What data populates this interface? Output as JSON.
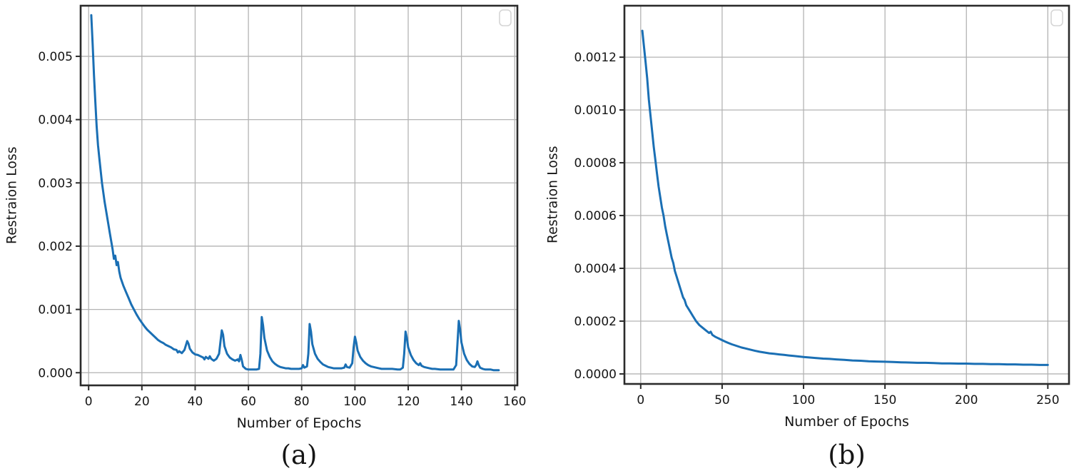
{
  "figure": {
    "background": "#ffffff",
    "line_color": "#1a6fb4",
    "grid_color": "#b3b3b3",
    "spine_color": "#2b2b2b",
    "text_color": "#151515",
    "legend_border_color": "#d5d5d5"
  },
  "chart_data": [
    {
      "type": "line",
      "id": "a",
      "caption": "(a)",
      "title": "",
      "xlabel": "Number of Epochs",
      "ylabel": "Restraion Loss",
      "grid": true,
      "legend": {
        "visible": true,
        "position": "upper right",
        "entries": []
      },
      "xlim": [
        -3,
        161
      ],
      "ylim": [
        -0.0002,
        0.0058
      ],
      "xticks": [
        0,
        20,
        40,
        60,
        80,
        100,
        120,
        140,
        160
      ],
      "xtick_labels": [
        "0",
        "20",
        "40",
        "60",
        "80",
        "100",
        "120",
        "140",
        "160"
      ],
      "yticks": [
        0.0,
        0.001,
        0.002,
        0.003,
        0.004,
        0.005
      ],
      "ytick_labels": [
        "0.000",
        "0.001",
        "0.002",
        "0.003",
        "0.004",
        "0.005"
      ],
      "series": [
        {
          "label": "",
          "x": [
            1,
            1.5,
            2,
            2.5,
            3,
            3.5,
            4,
            5,
            6,
            7,
            8,
            9,
            9.5,
            10,
            10.5,
            11,
            11.5,
            12,
            13,
            14,
            15,
            16,
            17,
            18,
            19,
            20,
            21,
            22,
            23,
            24,
            25,
            26,
            27,
            28,
            29,
            30,
            31,
            32,
            33,
            33.5,
            34,
            35,
            36,
            37,
            37.5,
            38,
            39,
            40,
            41,
            42,
            43,
            43.5,
            44,
            45,
            45.5,
            46,
            47,
            48,
            49,
            50,
            50.5,
            51,
            52,
            53,
            54,
            55,
            56,
            56.5,
            57,
            57.5,
            58,
            59,
            60,
            61,
            62,
            63,
            64,
            64.5,
            65,
            65.5,
            66,
            67,
            68,
            69,
            70,
            71,
            72,
            73,
            74,
            75,
            76,
            77,
            78,
            79,
            80,
            80.5,
            81,
            82,
            82.5,
            83,
            83.5,
            84,
            85,
            86,
            87,
            88,
            89,
            90,
            91,
            92,
            93,
            94,
            95,
            96,
            96.5,
            97,
            98,
            99,
            99.5,
            100,
            100.5,
            101,
            102,
            103,
            104,
            105,
            106,
            107,
            108,
            109,
            110,
            112,
            114,
            116,
            117,
            118,
            118.5,
            119,
            119.5,
            120,
            121,
            122,
            123,
            124,
            124.5,
            125,
            126,
            127,
            128,
            129,
            130,
            132,
            134,
            136,
            137,
            138,
            138.5,
            139,
            139.5,
            140,
            141,
            142,
            143,
            144,
            145,
            145.5,
            146,
            146.5,
            147,
            148,
            149,
            150,
            151,
            152,
            153,
            154
          ],
          "y": [
            0.00565,
            0.0052,
            0.0047,
            0.0043,
            0.0039,
            0.0036,
            0.0034,
            0.003,
            0.0027,
            0.00245,
            0.0022,
            0.00195,
            0.0018,
            0.00185,
            0.0017,
            0.00175,
            0.0016,
            0.0015,
            0.00138,
            0.00128,
            0.00118,
            0.00108,
            0.001,
            0.00092,
            0.00085,
            0.00079,
            0.00073,
            0.00068,
            0.00064,
            0.0006,
            0.00056,
            0.00052,
            0.00049,
            0.00047,
            0.00044,
            0.00042,
            0.0004,
            0.00037,
            0.00036,
            0.00032,
            0.00034,
            0.00031,
            0.00036,
            0.0005,
            0.00046,
            0.00038,
            0.00032,
            0.00029,
            0.00028,
            0.00026,
            0.00024,
            0.00021,
            0.00025,
            0.00022,
            0.00026,
            0.00022,
            0.00019,
            0.00022,
            0.0003,
            0.00067,
            0.0006,
            0.00042,
            0.0003,
            0.00024,
            0.00021,
            0.00019,
            0.00021,
            0.00018,
            0.00028,
            0.0002,
            0.0001,
            6e-05,
            5e-05,
            5e-05,
            5e-05,
            5e-05,
            6e-05,
            0.0003,
            0.00088,
            0.00075,
            0.00055,
            0.00035,
            0.00025,
            0.00018,
            0.00014,
            0.00011,
            9e-05,
            8e-05,
            7e-05,
            7e-05,
            6e-05,
            6e-05,
            6e-05,
            6e-05,
            7e-05,
            0.00012,
            8e-05,
            0.0001,
            0.0003,
            0.00077,
            0.00065,
            0.00045,
            0.0003,
            0.00022,
            0.00017,
            0.00013,
            0.00011,
            9e-05,
            8e-05,
            7e-05,
            7e-05,
            7e-05,
            7e-05,
            8e-05,
            0.00013,
            9e-05,
            8e-05,
            0.00015,
            0.0004,
            0.00057,
            0.00048,
            0.00035,
            0.00025,
            0.00019,
            0.00015,
            0.00012,
            0.0001,
            9e-05,
            8e-05,
            7e-05,
            6e-05,
            6e-05,
            6e-05,
            5e-05,
            5e-05,
            8e-05,
            0.0003,
            0.00065,
            0.00055,
            0.0004,
            0.00028,
            0.0002,
            0.00015,
            0.00012,
            0.00015,
            0.00011,
            9e-05,
            8e-05,
            7e-05,
            6e-05,
            6e-05,
            5e-05,
            5e-05,
            5e-05,
            5e-05,
            0.00012,
            0.00045,
            0.00082,
            0.00068,
            0.00048,
            0.0003,
            0.0002,
            0.00014,
            0.0001,
            9e-05,
            0.00012,
            0.00018,
            0.00012,
            8e-05,
            6e-05,
            5e-05,
            5e-05,
            5e-05,
            4e-05,
            4e-05,
            4e-05
          ]
        }
      ]
    },
    {
      "type": "line",
      "id": "b",
      "caption": "(b)",
      "title": "",
      "xlabel": "Number of Epochs",
      "ylabel": "Restraion Loss",
      "grid": true,
      "legend": {
        "visible": true,
        "position": "upper right",
        "entries": []
      },
      "xlim": [
        -10,
        263
      ],
      "ylim": [
        -3.8e-05,
        0.001395
      ],
      "xticks": [
        0,
        50,
        100,
        150,
        200,
        250
      ],
      "xtick_labels": [
        "0",
        "50",
        "100",
        "150",
        "200",
        "250"
      ],
      "yticks": [
        0.0,
        0.0002,
        0.0004,
        0.0006,
        0.0008,
        0.001,
        0.0012
      ],
      "ytick_labels": [
        "0.0000",
        "0.0002",
        "0.0004",
        "0.0006",
        "0.0008",
        "0.0010",
        "0.0012"
      ],
      "series": [
        {
          "label": "",
          "x": [
            1,
            2,
            3,
            4,
            5,
            6,
            7,
            8,
            9,
            10,
            11,
            12,
            13,
            14,
            15,
            16,
            17,
            18,
            19,
            20,
            21,
            22,
            23,
            24,
            25,
            26,
            27,
            28,
            29,
            30,
            32,
            34,
            36,
            38,
            40,
            42,
            43,
            44,
            46,
            48,
            50,
            52,
            54,
            56,
            58,
            60,
            62,
            64,
            66,
            68,
            70,
            73,
            76,
            79,
            82,
            85,
            88,
            91,
            94,
            97,
            100,
            104,
            108,
            112,
            116,
            120,
            125,
            130,
            135,
            140,
            145,
            150,
            155,
            160,
            165,
            170,
            175,
            180,
            185,
            190,
            195,
            200,
            205,
            210,
            215,
            220,
            225,
            230,
            235,
            240,
            245,
            250
          ],
          "y": [
            0.0013,
            0.00124,
            0.00118,
            0.00112,
            0.00104,
            0.00098,
            0.00092,
            0.00086,
            0.00081,
            0.00076,
            0.00071,
            0.00067,
            0.00063,
            0.0006,
            0.00056,
            0.00053,
            0.0005,
            0.00047,
            0.00044,
            0.00042,
            0.00039,
            0.00037,
            0.00035,
            0.00033,
            0.00031,
            0.00029,
            0.00028,
            0.00026,
            0.00025,
            0.00024,
            0.00022,
            0.0002,
            0.000185,
            0.000175,
            0.000165,
            0.000155,
            0.00016,
            0.000148,
            0.00014,
            0.000134,
            0.000128,
            0.000122,
            0.000117,
            0.000112,
            0.000108,
            0.000104,
            0.0001,
            9.7e-05,
            9.4e-05,
            9.1e-05,
            8.8e-05,
            8.4e-05,
            8.1e-05,
            7.8e-05,
            7.6e-05,
            7.4e-05,
            7.2e-05,
            7e-05,
            6.8e-05,
            6.6e-05,
            6.4e-05,
            6.2e-05,
            6e-05,
            5.8e-05,
            5.7e-05,
            5.5e-05,
            5.3e-05,
            5.1e-05,
            5e-05,
            4.8e-05,
            4.7e-05,
            4.6e-05,
            4.5e-05,
            4.4e-05,
            4.3e-05,
            4.2e-05,
            4.2e-05,
            4.1e-05,
            4e-05,
            4e-05,
            3.9e-05,
            3.9e-05,
            3.8e-05,
            3.8e-05,
            3.7e-05,
            3.7e-05,
            3.6e-05,
            3.6e-05,
            3.5e-05,
            3.5e-05,
            3.4e-05,
            3.4e-05
          ]
        }
      ]
    }
  ]
}
